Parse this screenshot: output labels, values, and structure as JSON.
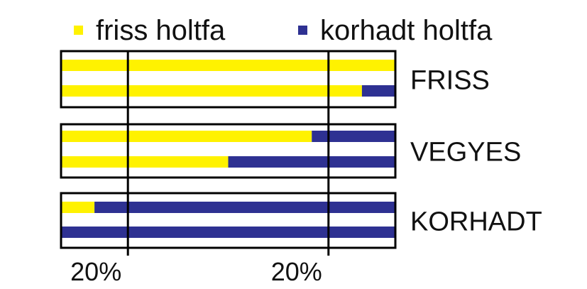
{
  "chart_data": {
    "type": "stacked-bar-horizontal",
    "categories": [
      "FRISS",
      null,
      "VEGYES",
      null,
      "KORHADT",
      null
    ],
    "series": [
      {
        "name": "friss holtfa",
        "color": "#fff200",
        "values": [
          100,
          90,
          75,
          50,
          10,
          0
        ]
      },
      {
        "name": "korhadt holtfa",
        "color": "#2e3192",
        "values": [
          0,
          10,
          25,
          50,
          90,
          100
        ]
      }
    ],
    "xlim": [
      0,
      100
    ],
    "xticks": [
      {
        "value": 20,
        "label": "20%"
      }
    ],
    "x2lim": [
      100,
      0
    ],
    "x2ticks": [
      {
        "value": 20,
        "label": "20%"
      }
    ],
    "legend": "top"
  }
}
